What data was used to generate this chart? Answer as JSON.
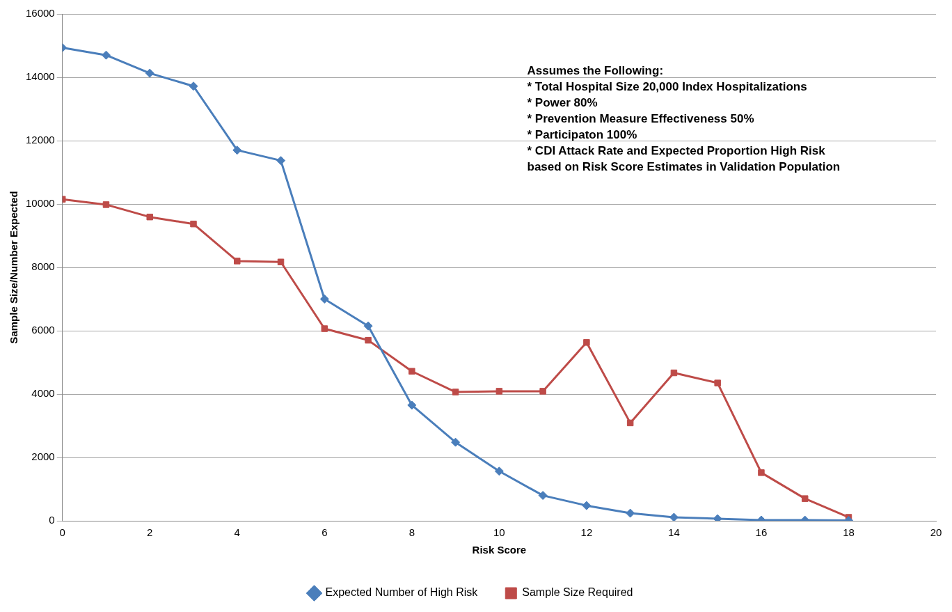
{
  "chart_data": {
    "type": "line",
    "xlabel": "Risk Score",
    "ylabel": "Sample Size/Number Expected",
    "x": [
      0,
      1,
      2,
      3,
      4,
      5,
      6,
      7,
      8,
      9,
      10,
      11,
      12,
      13,
      14,
      15,
      16,
      17,
      18
    ],
    "series": [
      {
        "name": "Expected Number of High Risk",
        "color": "#4a7ebb",
        "marker": "diamond",
        "values": [
          14935,
          14700,
          14130,
          13720,
          11700,
          11370,
          7000,
          6150,
          3650,
          2480,
          1565,
          800,
          480,
          240,
          110,
          65,
          22,
          20,
          10
        ]
      },
      {
        "name": "Sample Size Required",
        "color": "#be4b48",
        "marker": "square",
        "values": [
          10150,
          9980,
          9590,
          9370,
          8200,
          8170,
          6065,
          5700,
          4720,
          4065,
          4090,
          4090,
          5630,
          3090,
          4670,
          4350,
          1520,
          700,
          110
        ]
      }
    ],
    "xlim": [
      0,
      20
    ],
    "xticks": [
      0,
      2,
      4,
      6,
      8,
      10,
      12,
      14,
      16,
      18,
      20
    ],
    "ylim": [
      0,
      16000
    ],
    "yticks": [
      0,
      2000,
      4000,
      6000,
      8000,
      10000,
      12000,
      14000,
      16000
    ],
    "grid": "y",
    "legend": "bottom",
    "line_style": "solid",
    "annotations": [
      "Assumes the Following:",
      "* Total Hospital Size 20,000 Index Hospitalizations",
      "* Power 80%",
      "* Prevention Measure Effectiveness 50%",
      "* Participaton 100%",
      "* CDI Attack Rate and Expected Proportion High Risk",
      "based on Risk Score Estimates in Validation Population"
    ]
  }
}
